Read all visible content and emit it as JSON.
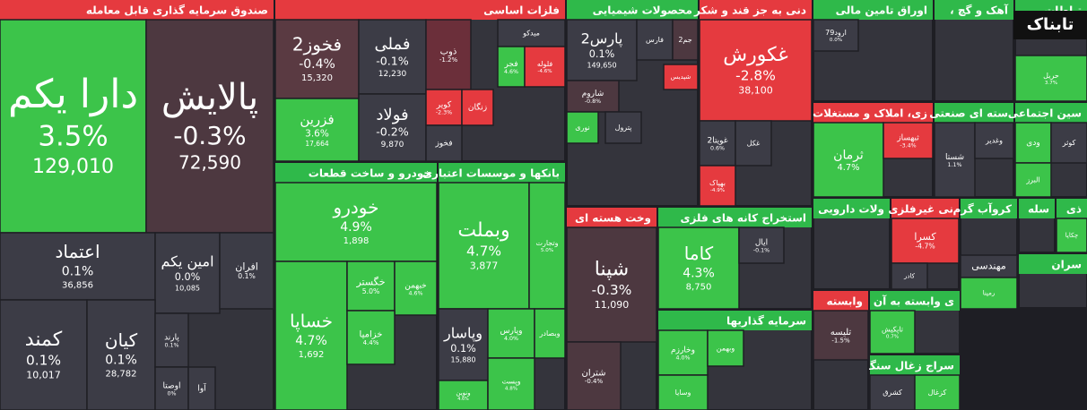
{
  "logo": "تابناک",
  "sectors": [
    {
      "title": "صندوق سرمایه گذاری قابل معامله",
      "color": "#e53a3f",
      "tiles": [
        {
          "name": "دارا یکم",
          "change": "3.5%",
          "value": "129,010",
          "color": "#3cc44a"
        },
        {
          "name": "پالایش",
          "change": "-0.3%",
          "value": "72,590",
          "color": "#4d3840"
        },
        {
          "name": "اعتماد",
          "change": "0.1%",
          "value": "36,856",
          "color": "#3c3c46"
        },
        {
          "name": "امین یکم",
          "change": "0.0%",
          "value": "10,085",
          "color": "#3c3c46"
        },
        {
          "name": "افران",
          "change": "0.1%",
          "color": "#3c3c46"
        },
        {
          "name": "کمند",
          "change": "0.1%",
          "value": "10,017",
          "color": "#3c3c46"
        },
        {
          "name": "کیان",
          "change": "0.1%",
          "value": "28,782",
          "color": "#3c3c46"
        },
        {
          "name": "پارند",
          "change": "0.1%",
          "color": "#3c3c46"
        },
        {
          "name": "اوصتا",
          "change": "0%",
          "color": "#3c3c46"
        },
        {
          "name": "آوا",
          "color": "#3c3c46"
        }
      ]
    },
    {
      "title": "فلزات اساسی",
      "color": "#e53a3f",
      "tiles": [
        {
          "name": "فخوز2",
          "change": "-0.4%",
          "value": "15,320",
          "color": "#5a3a42"
        },
        {
          "name": "فملی",
          "change": "-0.1%",
          "value": "12,230",
          "color": "#3c3c46"
        },
        {
          "name": "ذوب",
          "change": "-1.2%",
          "color": "#6b2f3a"
        },
        {
          "name": "میدکو",
          "color": "#3c3c46"
        },
        {
          "name": "فجر",
          "change": "4.6%",
          "color": "#3cc44a"
        },
        {
          "name": "فلوله",
          "change": "-4.6%",
          "color": "#e53a3f"
        },
        {
          "name": "فزرین",
          "change": "3.6%",
          "value": "17,664",
          "color": "#3cc44a"
        },
        {
          "name": "فولاد",
          "change": "-0.2%",
          "value": "9,870",
          "color": "#3c3c46"
        },
        {
          "name": "کویر",
          "change": "-2.3%",
          "color": "#e53a3f"
        },
        {
          "name": "زنگان",
          "color": "#e53a3f"
        },
        {
          "name": "فخوز",
          "color": "#3c3c46"
        }
      ]
    },
    {
      "title": "محصولات شیمیایی",
      "color": "#2fb94a",
      "tiles": [
        {
          "name": "پارس2",
          "change": "0.1%",
          "value": "149,650",
          "color": "#3c3c46"
        },
        {
          "name": "فارس",
          "color": "#3c3c46"
        },
        {
          "name": "جم2",
          "color": "#4d3840"
        },
        {
          "name": "شاروم",
          "change": "-0.8%",
          "color": "#4d3840"
        },
        {
          "name": "شپدیس",
          "color": "#e53a3f"
        },
        {
          "name": "پترول",
          "color": "#3c3c46"
        },
        {
          "name": "نوری",
          "color": "#3cc44a"
        }
      ]
    },
    {
      "title": "دنی به جز قند و شکر",
      "color": "#e53a3f",
      "tiles": [
        {
          "name": "غکورش",
          "change": "-2.8%",
          "value": "38,100",
          "color": "#e53a3f"
        },
        {
          "name": "غویتا2",
          "change": "0.6%",
          "color": "#3c3c46"
        },
        {
          "name": "غکل",
          "color": "#3c3c46"
        },
        {
          "name": "بهپاک",
          "change": "-4.9%",
          "color": "#e53a3f"
        }
      ]
    },
    {
      "title": "اوراق تامین مالی",
      "color": "#2fb94a",
      "tiles": [
        {
          "name": "ارود79",
          "change": "0.0%",
          "color": "#3c3c46"
        }
      ]
    },
    {
      "title": "، آهک و گچ",
      "color": "#2fb94a",
      "tiles": []
    },
    {
      "title": "تباطات",
      "color": "#2fb94a",
      "tiles": [
        {
          "name": "حریل",
          "change": "3.7%",
          "color": "#3cc44a"
        }
      ]
    },
    {
      "title": "زی، املاک و مستغلات",
      "color": "#e53a3f",
      "tiles": [
        {
          "name": "ثرمان",
          "change": "4.7%",
          "color": "#3cc44a"
        },
        {
          "name": "ثبهساز",
          "change": "-3.4%",
          "color": "#e53a3f"
        }
      ]
    },
    {
      "title": "سته ای صنعتی",
      "color": "#2fb94a",
      "tiles": [
        {
          "name": "شستا",
          "change": "1.1%",
          "color": "#3c3c46"
        },
        {
          "name": "وغدیر",
          "color": "#3c3c46"
        }
      ]
    },
    {
      "title": "سین اجتماعی",
      "color": "#2fb94a",
      "tiles": [
        {
          "name": "ودی",
          "color": "#3cc44a"
        },
        {
          "name": "کوثر",
          "color": "#3c3c46"
        },
        {
          "name": "البرز",
          "color": "#3cc44a"
        }
      ]
    },
    {
      "title": "خودرو و ساخت قطعات",
      "color": "#2fb94a",
      "tiles": [
        {
          "name": "خودرو",
          "change": "4.9%",
          "value": "1,898",
          "color": "#3cc44a"
        },
        {
          "name": "خساپا",
          "change": "4.7%",
          "value": "1,692",
          "color": "#3cc44a"
        },
        {
          "name": "خگستر",
          "change": "5.0%",
          "color": "#3cc44a"
        },
        {
          "name": "خبهمن",
          "change": "4.6%",
          "color": "#3cc44a"
        },
        {
          "name": "خزامیا",
          "change": "4.4%",
          "color": "#3cc44a"
        }
      ]
    },
    {
      "title": "بانکها و موسسات اعتباری",
      "color": "#2fb94a",
      "tiles": [
        {
          "name": "وبملت",
          "change": "4.7%",
          "value": "3,877",
          "color": "#3cc44a"
        },
        {
          "name": "وتجارت",
          "change": "5.0%",
          "color": "#3cc44a"
        },
        {
          "name": "وپاسار",
          "change": "0.1%",
          "value": "15,880",
          "color": "#3c3c46"
        },
        {
          "name": "وپارس",
          "change": "4.0%",
          "color": "#3cc44a"
        },
        {
          "name": "وبصادر",
          "color": "#3cc44a"
        },
        {
          "name": "ونوین",
          "change": "4.6%",
          "color": "#3cc44a"
        },
        {
          "name": "وپست",
          "change": "4.8%",
          "color": "#3cc44a"
        }
      ]
    },
    {
      "title": "وخت هسته ای",
      "color": "#e53a3f",
      "tiles": [
        {
          "name": "شپنا",
          "change": "-0.3%",
          "value": "11,090",
          "color": "#4d3840"
        },
        {
          "name": "شتران",
          "change": "-0.4%",
          "color": "#4d3840"
        }
      ]
    },
    {
      "title": "استخراج کانه های فلزی",
      "color": "#2fb94a",
      "tiles": [
        {
          "name": "کاما",
          "change": "4.3%",
          "value": "8,750",
          "color": "#3cc44a"
        },
        {
          "name": "ایال",
          "change": "-0.1%",
          "color": "#3c3c46"
        }
      ]
    },
    {
      "title": "سرمایه گذاریها",
      "color": "#2fb94a",
      "tiles": [
        {
          "name": "وخارزم",
          "change": "4.0%",
          "color": "#3cc44a"
        },
        {
          "name": "وبهمن",
          "color": "#3cc44a"
        },
        {
          "name": "وسایا",
          "color": "#3cc44a"
        }
      ]
    },
    {
      "title": "ولات دارویی",
      "color": "#2fb94a",
      "tiles": []
    },
    {
      "title": "نی غیرفلزی",
      "color": "#e53a3f",
      "tiles": [
        {
          "name": "کسرا",
          "change": "-4.7%",
          "color": "#e53a3f"
        },
        {
          "name": "کادر",
          "color": "#3c3c46"
        }
      ]
    },
    {
      "title": "کروآب گرم",
      "color": "#2fb94a",
      "tiles": [
        {
          "name": "مهندسی",
          "color": "#3c3c46"
        },
        {
          "name": "رمپنا",
          "color": "#3cc44a"
        }
      ]
    },
    {
      "title": "سله",
      "color": "#2fb94a",
      "tiles": []
    },
    {
      "title": "ذی",
      "color": "#2fb94a",
      "tiles": [
        {
          "name": "چکاپا",
          "color": "#3cc44a"
        }
      ]
    },
    {
      "title": "ی وابسته به آن",
      "color": "#2fb94a",
      "tiles": [
        {
          "name": "تاپکیش",
          "change": "0.7%",
          "color": "#3cc44a"
        }
      ]
    },
    {
      "title": "سراج زغال سنگ",
      "color": "#2fb94a",
      "tiles": [
        {
          "name": "کشرق",
          "color": "#3c3c46"
        },
        {
          "name": "کزغال",
          "color": "#3cc44a"
        }
      ]
    },
    {
      "title": "وابسته",
      "color": "#e53a3f",
      "tiles": [
        {
          "name": "تلیسه",
          "change": "-1.5%",
          "color": "#4d3840"
        }
      ]
    },
    {
      "title": "سران",
      "color": "#2fb94a",
      "tiles": []
    }
  ]
}
